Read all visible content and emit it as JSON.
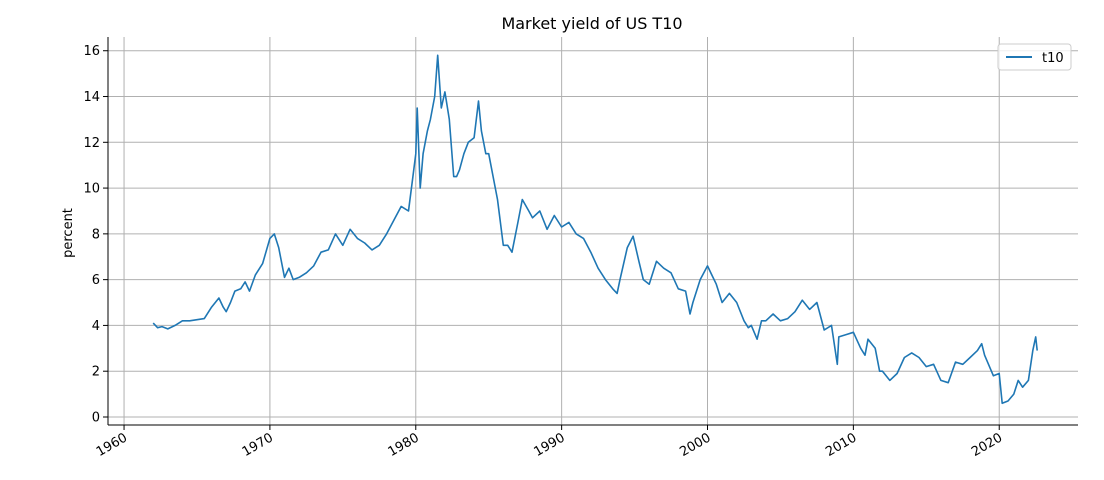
{
  "chart_data": {
    "type": "line",
    "title": "Market yield of US T10",
    "xlabel": "",
    "ylabel": "percent",
    "xlim": [
      1958.9,
      2025.4
    ],
    "ylim": [
      -0.35,
      16.6
    ],
    "x_ticks": [
      1960,
      1970,
      1980,
      1990,
      2000,
      2010,
      2020
    ],
    "x_tick_labels": [
      "1960",
      "1970",
      "1980",
      "1990",
      "2000",
      "2010",
      "2020"
    ],
    "y_ticks": [
      0,
      2,
      4,
      6,
      8,
      10,
      12,
      14,
      16
    ],
    "y_tick_labels": [
      "0",
      "2",
      "4",
      "6",
      "8",
      "10",
      "12",
      "14",
      "16"
    ],
    "grid": true,
    "legend_position": "top-right",
    "series": [
      {
        "name": "t10",
        "color": "#1f77b4",
        "x": [
          1962.0,
          1962.3,
          1962.6,
          1963.0,
          1963.5,
          1964.0,
          1964.5,
          1965.0,
          1965.5,
          1966.0,
          1966.5,
          1966.8,
          1967.0,
          1967.3,
          1967.6,
          1968.0,
          1968.3,
          1968.6,
          1969.0,
          1969.5,
          1970.0,
          1970.3,
          1970.6,
          1971.0,
          1971.3,
          1971.6,
          1972.0,
          1972.5,
          1973.0,
          1973.5,
          1974.0,
          1974.5,
          1975.0,
          1975.5,
          1976.0,
          1976.5,
          1977.0,
          1977.5,
          1978.0,
          1978.5,
          1979.0,
          1979.5,
          1979.8,
          1980.0,
          1980.1,
          1980.3,
          1980.5,
          1980.8,
          1981.0,
          1981.3,
          1981.5,
          1981.75,
          1982.0,
          1982.3,
          1982.6,
          1982.8,
          1983.0,
          1983.3,
          1983.6,
          1984.0,
          1984.3,
          1984.5,
          1984.8,
          1985.0,
          1985.3,
          1985.6,
          1986.0,
          1986.3,
          1986.6,
          1987.0,
          1987.3,
          1987.75,
          1988.0,
          1988.5,
          1989.0,
          1989.5,
          1990.0,
          1990.5,
          1991.0,
          1991.5,
          1992.0,
          1992.5,
          1993.0,
          1993.5,
          1993.8,
          1994.0,
          1994.5,
          1994.9,
          1995.3,
          1995.6,
          1996.0,
          1996.5,
          1997.0,
          1997.5,
          1998.0,
          1998.5,
          1998.8,
          1999.0,
          1999.5,
          2000.0,
          2000.3,
          2000.6,
          2001.0,
          2001.5,
          2002.0,
          2002.5,
          2002.8,
          2003.0,
          2003.4,
          2003.7,
          2004.0,
          2004.5,
          2005.0,
          2005.5,
          2006.0,
          2006.5,
          2007.0,
          2007.5,
          2008.0,
          2008.5,
          2008.9,
          2009.0,
          2009.5,
          2010.0,
          2010.5,
          2010.8,
          2011.0,
          2011.5,
          2011.8,
          2012.0,
          2012.5,
          2013.0,
          2013.5,
          2014.0,
          2014.5,
          2015.0,
          2015.5,
          2016.0,
          2016.5,
          2017.0,
          2017.5,
          2018.0,
          2018.5,
          2018.8,
          2019.0,
          2019.6,
          2020.0,
          2020.2,
          2020.6,
          2021.0,
          2021.3,
          2021.6,
          2022.0,
          2022.3,
          2022.5,
          2022.6
        ],
        "y": [
          4.1,
          3.9,
          3.95,
          3.85,
          4.0,
          4.2,
          4.2,
          4.25,
          4.3,
          4.8,
          5.2,
          4.8,
          4.6,
          5.0,
          5.5,
          5.6,
          5.9,
          5.5,
          6.2,
          6.7,
          7.8,
          8.0,
          7.4,
          6.1,
          6.5,
          6.0,
          6.1,
          6.3,
          6.6,
          7.2,
          7.3,
          8.0,
          7.5,
          8.2,
          7.8,
          7.6,
          7.3,
          7.5,
          8.0,
          8.6,
          9.2,
          9.0,
          10.5,
          11.5,
          13.5,
          10.0,
          11.5,
          12.5,
          13.0,
          14.0,
          15.8,
          13.5,
          14.2,
          13.0,
          10.5,
          10.5,
          10.8,
          11.5,
          12.0,
          12.2,
          13.8,
          12.5,
          11.5,
          11.5,
          10.5,
          9.5,
          7.5,
          7.5,
          7.2,
          8.5,
          9.5,
          9.0,
          8.7,
          9.0,
          8.2,
          8.8,
          8.3,
          8.5,
          8.0,
          7.8,
          7.2,
          6.5,
          6.0,
          5.6,
          5.4,
          6.0,
          7.4,
          7.9,
          6.8,
          6.0,
          5.8,
          6.8,
          6.5,
          6.3,
          5.6,
          5.5,
          4.5,
          5.0,
          6.0,
          6.6,
          6.2,
          5.8,
          5.0,
          5.4,
          5.0,
          4.2,
          3.9,
          4.0,
          3.4,
          4.2,
          4.2,
          4.5,
          4.2,
          4.3,
          4.6,
          5.1,
          4.7,
          5.0,
          3.8,
          4.0,
          2.3,
          3.5,
          3.6,
          3.7,
          3.0,
          2.7,
          3.4,
          3.0,
          2.0,
          2.0,
          1.6,
          1.9,
          2.6,
          2.8,
          2.6,
          2.2,
          2.3,
          1.6,
          1.5,
          2.4,
          2.3,
          2.6,
          2.9,
          3.2,
          2.7,
          1.8,
          1.9,
          0.6,
          0.7,
          1.0,
          1.6,
          1.3,
          1.6,
          2.9,
          3.5,
          2.9
        ]
      }
    ]
  }
}
